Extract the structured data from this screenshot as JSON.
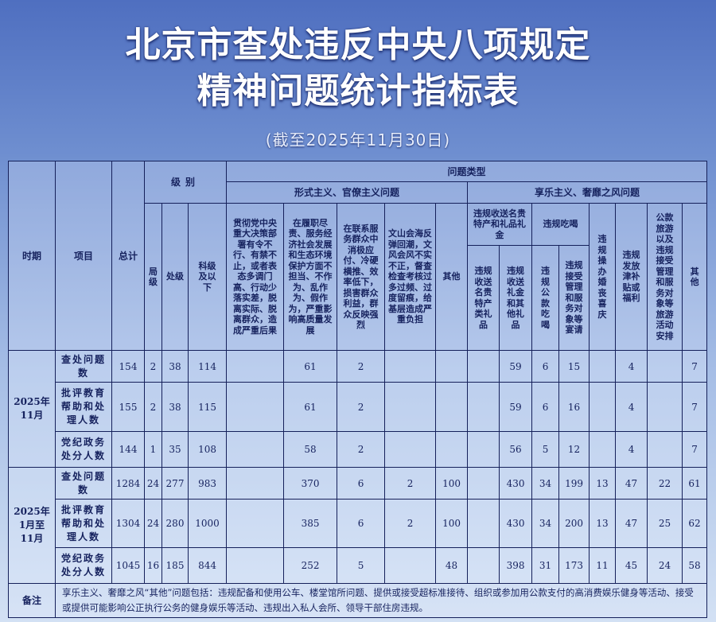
{
  "title": {
    "line1": "北京市查处违反中央八项规定",
    "line2": "精神问题统计指标表",
    "subtitle": "(截至2025年11月30日)"
  },
  "header": {
    "period": "时期",
    "item": "项目",
    "total": "总计",
    "level": "级别",
    "level_cols": [
      "局级",
      "处级",
      "科级及以下"
    ],
    "problem_type": "问题类型",
    "formalism": "形式主义、官僚主义问题",
    "formalism_cols": [
      "贯彻党中央重大决策部署有令不行、有禁不止，或者表态多调门高、行动少落实差，脱离实际、脱离群众，造成严重后果",
      "在履职尽责、服务经济社会发展和生态环境保护方面不担当、不作为、乱作为、假作为，严重影响高质量发展",
      "在联系服务群众中消极应付、冷硬横推、效率低下，损害群众利益，群众反映强烈",
      "文山会海反弹回潮，文风会风不实不正，督查检查考核过多过频、过度留痕，给基层造成严重负担",
      "其他"
    ],
    "hedonism": "享乐主义、奢靡之风问题",
    "gift_group": "违规收送名贵特产和礼品礼金",
    "gift_cols": [
      "违规收送名贵特产类礼品",
      "违规收送礼金和其他礼品"
    ],
    "dining_group": "违规吃喝",
    "dining_cols": [
      "违规公款吃喝",
      "违规接受管理和服务对象等宴请"
    ],
    "hedonism_cols": [
      "违规操办婚丧喜庆",
      "违规发放津补贴或福利",
      "公款旅游以及违规接受管理和服务对象等旅游活动安排",
      "其他"
    ]
  },
  "groups": [
    {
      "period": "2025年11月",
      "rows": [
        {
          "item": "查处问题数",
          "values": [
            "154",
            "2",
            "38",
            "114",
            "",
            "61",
            "2",
            "",
            "",
            "",
            "59",
            "6",
            "15",
            "",
            "4",
            "",
            "7"
          ]
        },
        {
          "item": "批评教育帮助和处理人数",
          "values": [
            "155",
            "2",
            "38",
            "115",
            "",
            "61",
            "2",
            "",
            "",
            "",
            "59",
            "6",
            "16",
            "",
            "4",
            "",
            "7"
          ]
        },
        {
          "item": "党纪政务处分人数",
          "values": [
            "144",
            "1",
            "35",
            "108",
            "",
            "58",
            "2",
            "",
            "",
            "",
            "56",
            "5",
            "12",
            "",
            "4",
            "",
            "7"
          ]
        }
      ]
    },
    {
      "period": "2025年1月至11月",
      "rows": [
        {
          "item": "查处问题数",
          "values": [
            "1284",
            "24",
            "277",
            "983",
            "",
            "370",
            "6",
            "2",
            "100",
            "",
            "430",
            "34",
            "199",
            "13",
            "47",
            "22",
            "61"
          ]
        },
        {
          "item": "批评教育帮助和处理人数",
          "values": [
            "1304",
            "24",
            "280",
            "1000",
            "",
            "385",
            "6",
            "2",
            "100",
            "",
            "430",
            "34",
            "200",
            "13",
            "47",
            "25",
            "62"
          ]
        },
        {
          "item": "党纪政务处分人数",
          "values": [
            "1045",
            "16",
            "185",
            "844",
            "",
            "252",
            "5",
            "",
            "48",
            "",
            "398",
            "31",
            "173",
            "11",
            "45",
            "24",
            "58"
          ]
        }
      ]
    }
  ],
  "notes": {
    "label": "备注",
    "text": "享乐主义、奢靡之风“其他”问题包括：违规配备和使用公车、楼堂馆所问题、提供或接受超标准接待、组织或参加用公款支付的高消费娱乐健身等活动、接受或提供可能影响公正执行公务的健身娱乐等活动、违规出入私人会所、领导干部住房违规。"
  }
}
